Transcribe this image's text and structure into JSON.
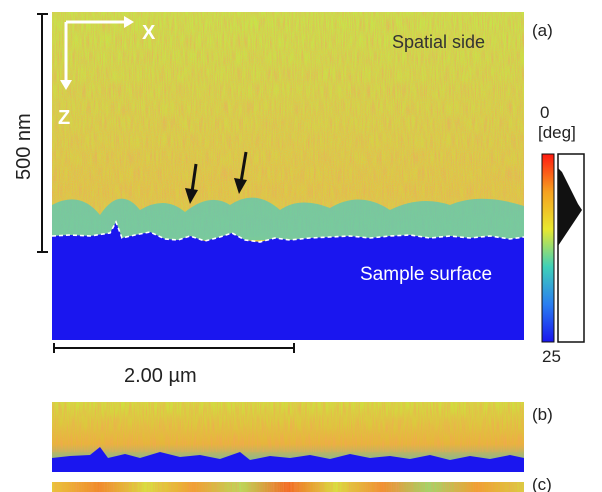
{
  "labels": {
    "panel_a": "(a)",
    "panel_b": "(b)",
    "panel_c": "(c)",
    "spatial_side": "Spatial side",
    "sample_surface": "Sample surface",
    "scale_vertical": "500 nm",
    "scale_horizontal": "2.00 µm",
    "axis_x": "X",
    "axis_z": "Z",
    "colorbar_top": "0",
    "colorbar_unit": "[deg]",
    "colorbar_bottom": "25"
  },
  "colors": {
    "surface_blue": "#1a16ef",
    "field_yellow": "#d8e43c",
    "field_orange": "#f0a030",
    "field_red": "#e83a1c",
    "arrow_black": "#111111"
  }
}
